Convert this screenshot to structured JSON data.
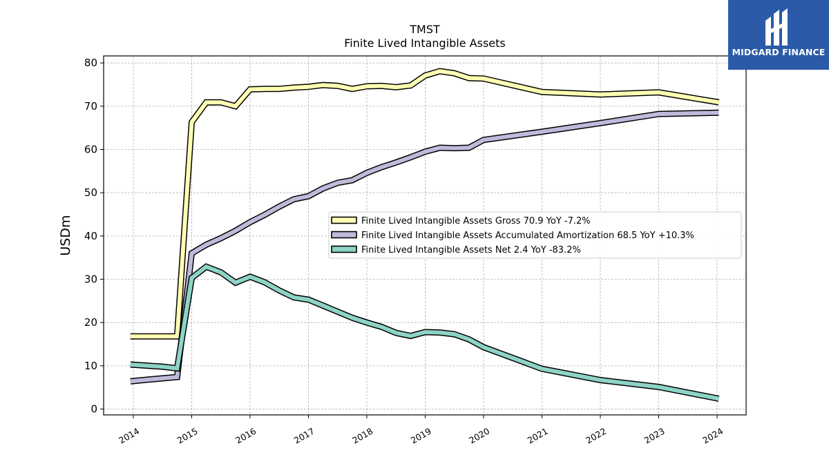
{
  "brand": {
    "name": "MIDGARD FINANCE",
    "color": "#2b5aa8"
  },
  "chart_data": {
    "type": "line",
    "title": "TMST",
    "subtitle": "Finite Lived Intangible Assets",
    "xlabel": "",
    "ylabel": "USDm",
    "xlim": [
      2013.5,
      2024.5
    ],
    "ylim": [
      -1,
      82
    ],
    "x_ticks": [
      2014,
      2015,
      2016,
      2017,
      2018,
      2019,
      2020,
      2021,
      2022,
      2023,
      2024
    ],
    "x_tick_labels": [
      "2014",
      "2015",
      "2016",
      "2017",
      "2018",
      "2019",
      "2020",
      "2021",
      "2022",
      "2023",
      "2024"
    ],
    "y_ticks": [
      0,
      10,
      20,
      30,
      40,
      50,
      60,
      70,
      80
    ],
    "y_tick_labels": [
      "0",
      "10",
      "20",
      "30",
      "40",
      "50",
      "60",
      "70",
      "80"
    ],
    "grid": true,
    "legend_position": "center-right",
    "series": [
      {
        "name": "Finite Lived Intangible Assets Gross",
        "legend_label": "Finite Lived Intangible Assets Gross  70.9 YoY -7.2%",
        "color": "#ffffb3",
        "x": [
          2013.95,
          2014.25,
          2014.5,
          2014.75,
          2015.0,
          2015.25,
          2015.5,
          2015.75,
          2016.0,
          2016.25,
          2016.5,
          2016.75,
          2017.0,
          2017.25,
          2017.5,
          2017.75,
          2018.0,
          2018.25,
          2018.5,
          2018.75,
          2019.0,
          2019.25,
          2019.5,
          2019.75,
          2020.0,
          2021.0,
          2022.0,
          2023.0,
          2024.03
        ],
        "values": [
          16.8,
          16.8,
          16.8,
          16.8,
          66.3,
          70.9,
          70.9,
          70.0,
          73.9,
          74.0,
          74.0,
          74.3,
          74.5,
          74.9,
          74.7,
          74.0,
          74.6,
          74.7,
          74.4,
          74.8,
          77.1,
          78.1,
          77.6,
          76.5,
          76.4,
          73.3,
          72.7,
          73.2,
          70.9
        ]
      },
      {
        "name": "Finite Lived Intangible Assets Accumulated Amortization",
        "legend_label": "Finite Lived Intangible Assets Accumulated Amortization  68.5 YoY +10.3%",
        "color": "#bebada",
        "x": [
          2013.95,
          2014.25,
          2014.5,
          2014.75,
          2015.0,
          2015.25,
          2015.5,
          2015.75,
          2016.0,
          2016.25,
          2016.5,
          2016.75,
          2017.0,
          2017.25,
          2017.5,
          2017.75,
          2018.0,
          2018.25,
          2018.5,
          2018.75,
          2019.0,
          2019.25,
          2019.5,
          2019.75,
          2020.0,
          2021.0,
          2022.0,
          2023.0,
          2024.03
        ],
        "values": [
          6.4,
          6.8,
          7.1,
          7.4,
          36.0,
          38.0,
          39.5,
          41.2,
          43.2,
          44.9,
          46.8,
          48.5,
          49.2,
          51.0,
          52.3,
          52.9,
          54.6,
          55.9,
          57.0,
          58.2,
          59.5,
          60.4,
          60.3,
          60.4,
          62.2,
          64.1,
          66.1,
          68.2,
          68.5
        ]
      },
      {
        "name": "Finite Lived Intangible Assets Net",
        "legend_label": "Finite Lived Intangible Assets Net  2.4 YoY -83.2%",
        "color": "#8dd3c7",
        "x": [
          2013.95,
          2014.25,
          2014.5,
          2014.75,
          2015.0,
          2015.25,
          2015.5,
          2015.75,
          2016.0,
          2016.25,
          2016.5,
          2016.75,
          2017.0,
          2017.25,
          2017.5,
          2017.75,
          2018.0,
          2018.25,
          2018.5,
          2018.75,
          2019.0,
          2019.25,
          2019.5,
          2019.75,
          2020.0,
          2021.0,
          2022.0,
          2023.0,
          2024.03
        ],
        "values": [
          10.3,
          10.0,
          9.8,
          9.4,
          30.3,
          32.9,
          31.6,
          29.2,
          30.6,
          29.3,
          27.4,
          25.8,
          25.3,
          23.9,
          22.5,
          21.1,
          20.0,
          19.0,
          17.6,
          16.9,
          17.8,
          17.7,
          17.3,
          16.1,
          14.3,
          9.3,
          6.7,
          5.1,
          2.4
        ]
      }
    ]
  }
}
